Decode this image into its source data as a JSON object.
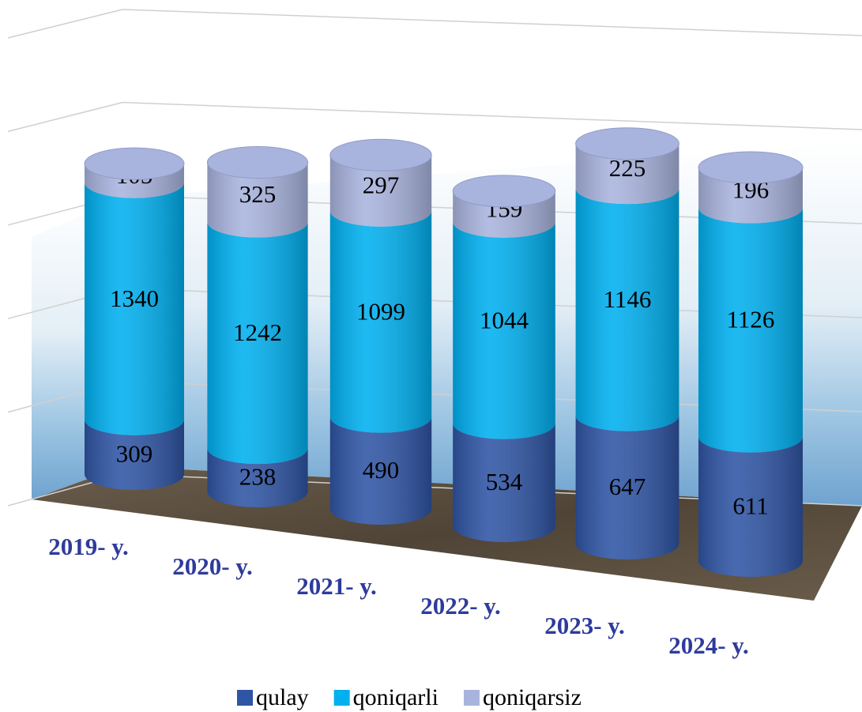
{
  "chart_data": {
    "type": "bar",
    "stacked": true,
    "categories": [
      "2019- y.",
      "2020- y.",
      "2021- y.",
      "2022- y.",
      "2023- y.",
      "2024- y."
    ],
    "series": [
      {
        "name": "qulay",
        "color": "#2f55a5",
        "values": [
          309,
          238,
          490,
          534,
          647,
          611
        ]
      },
      {
        "name": "qoniqarli",
        "color": "#00b0f0",
        "values": [
          1340,
          1242,
          1099,
          1044,
          1146,
          1126
        ]
      },
      {
        "name": "qoniqarsiz",
        "color": "#a9b4de",
        "values": [
          105,
          325,
          297,
          159,
          225,
          196
        ]
      }
    ],
    "ylim": [
      0,
      2500
    ],
    "yticks": [
      0,
      500,
      1000,
      1500,
      2000,
      2500
    ],
    "grid": true,
    "legend": "bottom"
  }
}
